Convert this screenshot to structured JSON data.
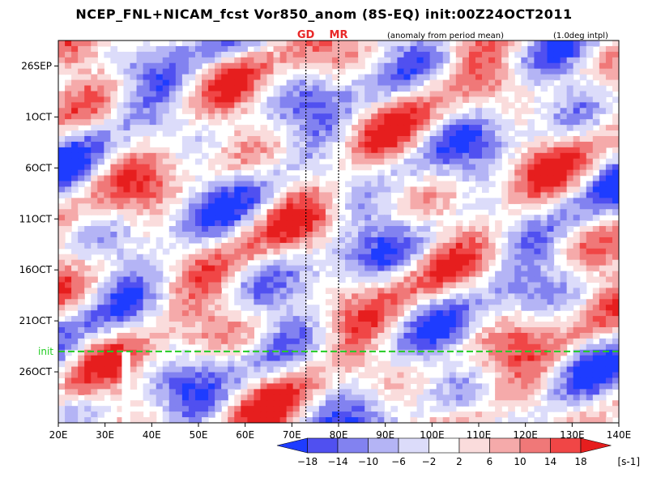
{
  "chart_data": {
    "type": "heatmap",
    "title": "NCEP_FNL+NICAM_fcst Vor850_anom (8S-EQ) init:00Z24OCT2011",
    "subtitle_left": "(anomaly from period mean)",
    "subtitle_right": "(1.0deg intpl)",
    "x_ticks": [
      "20E",
      "30E",
      "40E",
      "50E",
      "60E",
      "70E",
      "80E",
      "90E",
      "100E",
      "110E",
      "120E",
      "130E",
      "140E"
    ],
    "x_range": [
      20,
      140
    ],
    "y_ticks": [
      {
        "label": "26SEP",
        "day": 0
      },
      {
        "label": "1OCT",
        "day": 5
      },
      {
        "label": "6OCT",
        "day": 10
      },
      {
        "label": "11OCT",
        "day": 15
      },
      {
        "label": "16OCT",
        "day": 20
      },
      {
        "label": "21OCT",
        "day": 25
      },
      {
        "label": "26OCT",
        "day": 30
      }
    ],
    "y_range": [
      -2.5,
      35
    ],
    "init_line": {
      "label": "init",
      "day": 28
    },
    "vertical_markers": [
      {
        "label": "GD",
        "lon": 73
      },
      {
        "label": "MR",
        "lon": 80
      }
    ],
    "colorbar": {
      "unit": "[s-1]",
      "tick_labels": [
        "−18",
        "−14",
        "−10",
        "−6",
        "−2",
        "2",
        "6",
        "10",
        "14",
        "18"
      ],
      "colors": [
        "#1e3cff",
        "#5050f0",
        "#8282f0",
        "#b4b4f5",
        "#dcdcfa",
        "#ffffff",
        "#fadcdc",
        "#f5aaaa",
        "#f07878",
        "#f04646",
        "#e61e1e"
      ]
    }
  }
}
